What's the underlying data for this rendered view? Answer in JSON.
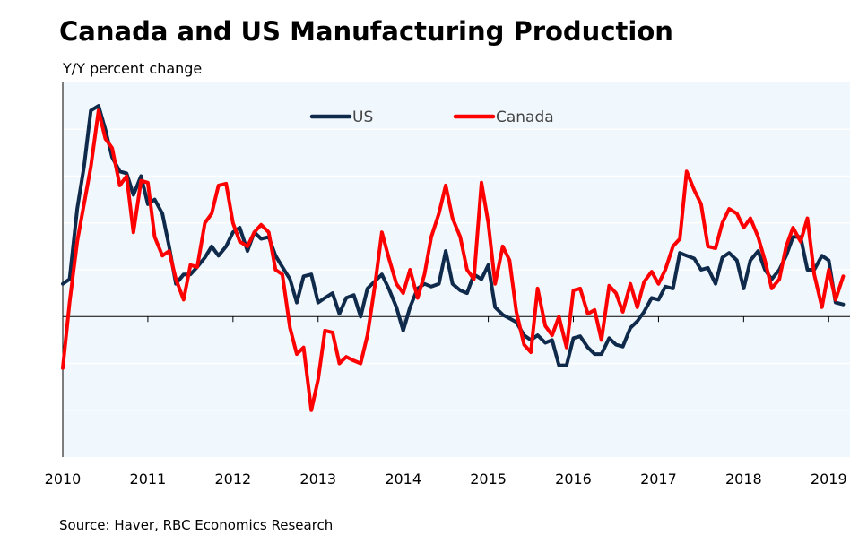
{
  "title": "Canada and US Manufacturing Production",
  "source": "Source: Haver, RBC Economics Research",
  "colors": {
    "us": "#0f2a4a",
    "canada": "#ff0000",
    "plot_bg": "#f0f7fd",
    "grid": "#ffffff",
    "axis": "#000000"
  },
  "chart_data": {
    "type": "line",
    "title": "Canada and US Manufacturing Production",
    "ylabel": "Y/Y percent change",
    "xlabel": "",
    "xlim": [
      2010.0,
      2019.25
    ],
    "ylim": [
      -15,
      25
    ],
    "grid": true,
    "legend_position": "top-center",
    "x_ticks": [
      {
        "value": 2010,
        "label": "2010"
      },
      {
        "value": 2011,
        "label": "2011"
      },
      {
        "value": 2012,
        "label": "2012"
      },
      {
        "value": 2013,
        "label": "2013"
      },
      {
        "value": 2014,
        "label": "2014"
      },
      {
        "value": 2015,
        "label": "2015"
      },
      {
        "value": 2016,
        "label": "2016"
      },
      {
        "value": 2017,
        "label": "2017"
      },
      {
        "value": 2018,
        "label": "2018"
      },
      {
        "value": 2019,
        "label": "2019"
      }
    ],
    "series": [
      {
        "name": "US",
        "points": [
          [
            2010.0,
            3.5
          ],
          [
            2010.08,
            4.0
          ],
          [
            2010.17,
            11.5
          ],
          [
            2010.25,
            16.0
          ],
          [
            2010.33,
            22.0
          ],
          [
            2010.42,
            22.5
          ],
          [
            2010.5,
            20.0
          ],
          [
            2010.58,
            17.0
          ],
          [
            2010.67,
            15.5
          ],
          [
            2010.75,
            15.3
          ],
          [
            2010.83,
            13.0
          ],
          [
            2010.92,
            15.0
          ],
          [
            2011.0,
            12.0
          ],
          [
            2011.08,
            12.5
          ],
          [
            2011.17,
            11.0
          ],
          [
            2011.25,
            7.5
          ],
          [
            2011.33,
            3.5
          ],
          [
            2011.42,
            4.5
          ],
          [
            2011.5,
            4.5
          ],
          [
            2011.58,
            5.3
          ],
          [
            2011.67,
            6.3
          ],
          [
            2011.75,
            7.5
          ],
          [
            2011.83,
            6.5
          ],
          [
            2011.92,
            7.5
          ],
          [
            2012.0,
            9.0
          ],
          [
            2012.08,
            9.5
          ],
          [
            2012.17,
            7.0
          ],
          [
            2012.25,
            9.0
          ],
          [
            2012.33,
            8.3
          ],
          [
            2012.42,
            8.5
          ],
          [
            2012.5,
            6.5
          ],
          [
            2012.58,
            5.3
          ],
          [
            2012.67,
            4.0
          ],
          [
            2012.75,
            1.5
          ],
          [
            2012.83,
            4.3
          ],
          [
            2012.92,
            4.5
          ],
          [
            2013.0,
            1.5
          ],
          [
            2013.08,
            2.0
          ],
          [
            2013.17,
            2.5
          ],
          [
            2013.25,
            0.3
          ],
          [
            2013.33,
            2.0
          ],
          [
            2013.42,
            2.3
          ],
          [
            2013.5,
            0.0
          ],
          [
            2013.58,
            3.0
          ],
          [
            2013.67,
            3.8
          ],
          [
            2013.75,
            4.5
          ],
          [
            2013.83,
            3.0
          ],
          [
            2013.92,
            1.0
          ],
          [
            2014.0,
            -1.5
          ],
          [
            2014.08,
            1.0
          ],
          [
            2014.17,
            3.0
          ],
          [
            2014.25,
            3.5
          ],
          [
            2014.33,
            3.2
          ],
          [
            2014.42,
            3.5
          ],
          [
            2014.5,
            7.0
          ],
          [
            2014.58,
            3.5
          ],
          [
            2014.67,
            2.8
          ],
          [
            2014.75,
            2.5
          ],
          [
            2014.83,
            4.5
          ],
          [
            2014.92,
            4.0
          ],
          [
            2015.0,
            5.5
          ],
          [
            2015.08,
            1.0
          ],
          [
            2015.17,
            0.2
          ],
          [
            2015.25,
            -0.2
          ],
          [
            2015.33,
            -0.6
          ],
          [
            2015.42,
            -2.0
          ],
          [
            2015.5,
            -2.5
          ],
          [
            2015.58,
            -2.0
          ],
          [
            2015.67,
            -2.8
          ],
          [
            2015.75,
            -2.5
          ],
          [
            2015.83,
            -5.2
          ],
          [
            2015.92,
            -5.2
          ],
          [
            2016.0,
            -2.3
          ],
          [
            2016.08,
            -2.1
          ],
          [
            2016.17,
            -3.3
          ],
          [
            2016.25,
            -4.0
          ],
          [
            2016.33,
            -4.0
          ],
          [
            2016.42,
            -2.3
          ],
          [
            2016.5,
            -3.0
          ],
          [
            2016.58,
            -3.2
          ],
          [
            2016.67,
            -1.2
          ],
          [
            2016.75,
            -0.5
          ],
          [
            2016.83,
            0.5
          ],
          [
            2016.92,
            2.0
          ],
          [
            2017.0,
            1.8
          ],
          [
            2017.08,
            3.2
          ],
          [
            2017.17,
            3.0
          ],
          [
            2017.25,
            6.8
          ],
          [
            2017.33,
            6.5
          ],
          [
            2017.42,
            6.2
          ],
          [
            2017.5,
            5.0
          ],
          [
            2017.58,
            5.2
          ],
          [
            2017.67,
            3.5
          ],
          [
            2017.75,
            6.3
          ],
          [
            2017.83,
            6.8
          ],
          [
            2017.92,
            6.0
          ],
          [
            2018.0,
            3.0
          ],
          [
            2018.08,
            6.0
          ],
          [
            2018.17,
            7.0
          ],
          [
            2018.25,
            5.0
          ],
          [
            2018.33,
            4.0
          ],
          [
            2018.42,
            5.0
          ],
          [
            2018.5,
            6.5
          ],
          [
            2018.58,
            8.5
          ],
          [
            2018.67,
            8.5
          ],
          [
            2018.75,
            5.0
          ],
          [
            2018.83,
            5.0
          ],
          [
            2018.92,
            6.5
          ],
          [
            2019.0,
            6.0
          ],
          [
            2019.08,
            1.5
          ],
          [
            2019.17,
            1.3
          ]
        ]
      },
      {
        "name": "Canada",
        "points": [
          [
            2010.0,
            -5.5
          ],
          [
            2010.08,
            1.5
          ],
          [
            2010.17,
            8.0
          ],
          [
            2010.25,
            12.0
          ],
          [
            2010.33,
            16.0
          ],
          [
            2010.42,
            22.0
          ],
          [
            2010.5,
            19.0
          ],
          [
            2010.58,
            18.0
          ],
          [
            2010.67,
            14.0
          ],
          [
            2010.75,
            15.0
          ],
          [
            2010.83,
            9.0
          ],
          [
            2010.92,
            14.5
          ],
          [
            2011.0,
            14.3
          ],
          [
            2011.08,
            8.5
          ],
          [
            2011.17,
            6.5
          ],
          [
            2011.25,
            7.0
          ],
          [
            2011.33,
            4.0
          ],
          [
            2011.42,
            1.8
          ],
          [
            2011.5,
            5.5
          ],
          [
            2011.58,
            5.3
          ],
          [
            2011.67,
            10.0
          ],
          [
            2011.75,
            11.0
          ],
          [
            2011.83,
            14.0
          ],
          [
            2011.92,
            14.2
          ],
          [
            2012.0,
            10.0
          ],
          [
            2012.08,
            8.0
          ],
          [
            2012.17,
            7.5
          ],
          [
            2012.25,
            9.0
          ],
          [
            2012.33,
            9.8
          ],
          [
            2012.42,
            9.0
          ],
          [
            2012.5,
            5.0
          ],
          [
            2012.58,
            4.5
          ],
          [
            2012.67,
            -1.2
          ],
          [
            2012.75,
            -4.0
          ],
          [
            2012.83,
            -3.3
          ],
          [
            2012.92,
            -10.0
          ],
          [
            2013.0,
            -6.7
          ],
          [
            2013.08,
            -1.5
          ],
          [
            2013.17,
            -1.7
          ],
          [
            2013.25,
            -5.0
          ],
          [
            2013.33,
            -4.3
          ],
          [
            2013.42,
            -4.7
          ],
          [
            2013.5,
            -5.0
          ],
          [
            2013.58,
            -2.0
          ],
          [
            2013.67,
            3.5
          ],
          [
            2013.75,
            9.0
          ],
          [
            2013.83,
            6.3
          ],
          [
            2013.92,
            3.5
          ],
          [
            2014.0,
            2.5
          ],
          [
            2014.08,
            5.0
          ],
          [
            2014.17,
            2.0
          ],
          [
            2014.25,
            4.5
          ],
          [
            2014.33,
            8.5
          ],
          [
            2014.42,
            11.0
          ],
          [
            2014.5,
            14.0
          ],
          [
            2014.58,
            10.5
          ],
          [
            2014.67,
            8.5
          ],
          [
            2014.75,
            5.0
          ],
          [
            2014.83,
            4.0
          ],
          [
            2014.92,
            14.3
          ],
          [
            2015.0,
            10.0
          ],
          [
            2015.08,
            3.5
          ],
          [
            2015.17,
            7.5
          ],
          [
            2015.25,
            6.0
          ],
          [
            2015.33,
            0.5
          ],
          [
            2015.42,
            -3.0
          ],
          [
            2015.5,
            -3.8
          ],
          [
            2015.58,
            3.0
          ],
          [
            2015.67,
            -1.0
          ],
          [
            2015.75,
            -2.0
          ],
          [
            2015.83,
            0.0
          ],
          [
            2015.92,
            -3.3
          ],
          [
            2016.0,
            2.8
          ],
          [
            2016.08,
            3.0
          ],
          [
            2016.17,
            0.3
          ],
          [
            2016.25,
            0.7
          ],
          [
            2016.33,
            -2.5
          ],
          [
            2016.42,
            3.3
          ],
          [
            2016.5,
            2.5
          ],
          [
            2016.58,
            0.5
          ],
          [
            2016.67,
            3.5
          ],
          [
            2016.75,
            1.0
          ],
          [
            2016.83,
            3.7
          ],
          [
            2016.92,
            4.8
          ],
          [
            2017.0,
            3.5
          ],
          [
            2017.08,
            5.0
          ],
          [
            2017.17,
            7.5
          ],
          [
            2017.25,
            8.3
          ],
          [
            2017.33,
            15.5
          ],
          [
            2017.42,
            13.5
          ],
          [
            2017.5,
            12.0
          ],
          [
            2017.58,
            7.5
          ],
          [
            2017.67,
            7.3
          ],
          [
            2017.75,
            10.0
          ],
          [
            2017.83,
            11.5
          ],
          [
            2017.92,
            11.0
          ],
          [
            2018.0,
            9.5
          ],
          [
            2018.08,
            10.5
          ],
          [
            2018.17,
            8.5
          ],
          [
            2018.25,
            6.0
          ],
          [
            2018.33,
            3.0
          ],
          [
            2018.42,
            4.0
          ],
          [
            2018.5,
            7.5
          ],
          [
            2018.58,
            9.5
          ],
          [
            2018.67,
            8.0
          ],
          [
            2018.75,
            10.5
          ],
          [
            2018.83,
            4.5
          ],
          [
            2018.92,
            1.0
          ],
          [
            2019.0,
            5.0
          ],
          [
            2019.08,
            1.8
          ],
          [
            2019.17,
            4.3
          ]
        ]
      }
    ]
  }
}
